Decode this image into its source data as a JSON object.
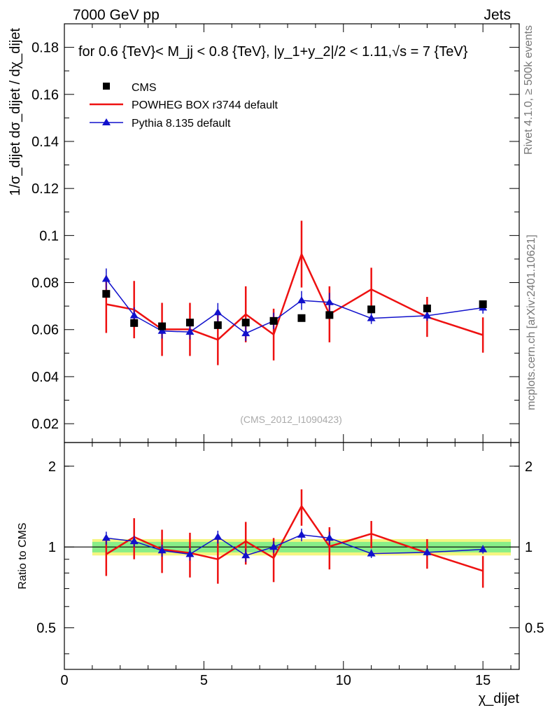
{
  "header": {
    "left": "7000 GeV pp",
    "right": "Jets"
  },
  "side_labels": {
    "rivet": "Rivet 4.1.0, ≥ 500k events",
    "mcplots": "mcplots.cern.ch [arXiv:2401.10621]"
  },
  "chart_data": {
    "type": "line",
    "title": "for 0.6 {TeV}< M_jj < 0.8 {TeV}, |y_1+y_2|/2 < 1.11,√s = 7 {TeV}",
    "watermark": "(CMS_2012_I1090423)",
    "xlabel": "χ_dijet",
    "ylabel": "1/σ_dijet dσ_dijet / dχ_dijet",
    "ratio_ylabel": "Ratio to CMS",
    "xlim": [
      0,
      16.3
    ],
    "ylim": [
      0.012,
      0.19
    ],
    "ratio_ylim": [
      0.35,
      2.45
    ],
    "x_ticks": [
      0,
      5,
      10,
      15
    ],
    "y_ticks": [
      0.02,
      0.04,
      0.06,
      0.08,
      0.1,
      0.12,
      0.14,
      0.16,
      0.18
    ],
    "y_tick_labels": [
      "0.02",
      "0.04",
      "0.06",
      "0.08",
      "0.1",
      "0.12",
      "0.14",
      "0.16",
      "0.18"
    ],
    "ratio_ticks": [
      0.5,
      1,
      2
    ],
    "ratio_tick_labels": [
      "0.5",
      "1",
      "2"
    ],
    "x": [
      1.5,
      2.5,
      3.5,
      4.5,
      5.5,
      6.5,
      7.5,
      8.5,
      9.5,
      11,
      13,
      15
    ],
    "x_edges": [
      1,
      2,
      3,
      4,
      5,
      6,
      7,
      8,
      9,
      10,
      12,
      14,
      16
    ],
    "series": [
      {
        "name": "CMS",
        "color": "#000000",
        "marker": "square",
        "values": [
          0.0752,
          0.0628,
          0.0614,
          0.063,
          0.0619,
          0.063,
          0.0637,
          0.0649,
          0.0662,
          0.0686,
          0.069,
          0.0708
        ],
        "ratio": [
          1,
          1,
          1,
          1,
          1,
          1,
          1,
          1,
          1,
          1,
          1,
          1
        ]
      },
      {
        "name": "POWHEG BOX r3744 default",
        "color": "#ee1111",
        "marker": "none",
        "values": [
          0.0708,
          0.0685,
          0.0601,
          0.0601,
          0.0557,
          0.0665,
          0.0579,
          0.0921,
          0.0665,
          0.0771,
          0.0654,
          0.0577
        ],
        "errors": [
          0.0122,
          0.0122,
          0.0113,
          0.0113,
          0.0108,
          0.0119,
          0.011,
          0.0142,
          0.0119,
          0.0092,
          0.0085,
          0.0075
        ],
        "ratio": [
          0.94,
          1.09,
          0.98,
          0.95,
          0.9,
          1.05,
          0.91,
          1.42,
          1.005,
          1.12,
          0.95,
          0.815
        ],
        "ratio_errors": [
          0.16,
          0.19,
          0.18,
          0.18,
          0.17,
          0.19,
          0.17,
          0.22,
          0.18,
          0.13,
          0.12,
          0.11
        ]
      },
      {
        "name": "Pythia 8.135 default",
        "color": "#1111cc",
        "marker": "triangle",
        "values": [
          0.0815,
          0.066,
          0.0594,
          0.059,
          0.0673,
          0.0584,
          0.0637,
          0.0724,
          0.0716,
          0.0648,
          0.0659,
          0.0693
        ],
        "errors": [
          0.0045,
          0.0035,
          0.0032,
          0.0032,
          0.004,
          0.0033,
          0.0035,
          0.004,
          0.004,
          0.0024,
          0.0022,
          0.0025
        ],
        "ratio": [
          1.08,
          1.05,
          0.97,
          0.94,
          1.09,
          0.93,
          1.0,
          1.11,
          1.08,
          0.945,
          0.955,
          0.98
        ],
        "ratio_errors": [
          0.06,
          0.05,
          0.05,
          0.05,
          0.06,
          0.05,
          0.05,
          0.06,
          0.06,
          0.035,
          0.03,
          0.035
        ]
      }
    ],
    "ratio_band": {
      "inner_color": "#88ee88",
      "outer_color": "#f5f580",
      "inner": [
        0.045,
        0.045,
        0.045,
        0.045,
        0.045,
        0.045,
        0.045,
        0.045,
        0.045,
        0.045,
        0.045,
        0.045
      ],
      "outer": [
        0.07,
        0.07,
        0.07,
        0.07,
        0.07,
        0.07,
        0.07,
        0.07,
        0.07,
        0.07,
        0.07,
        0.07
      ]
    }
  }
}
